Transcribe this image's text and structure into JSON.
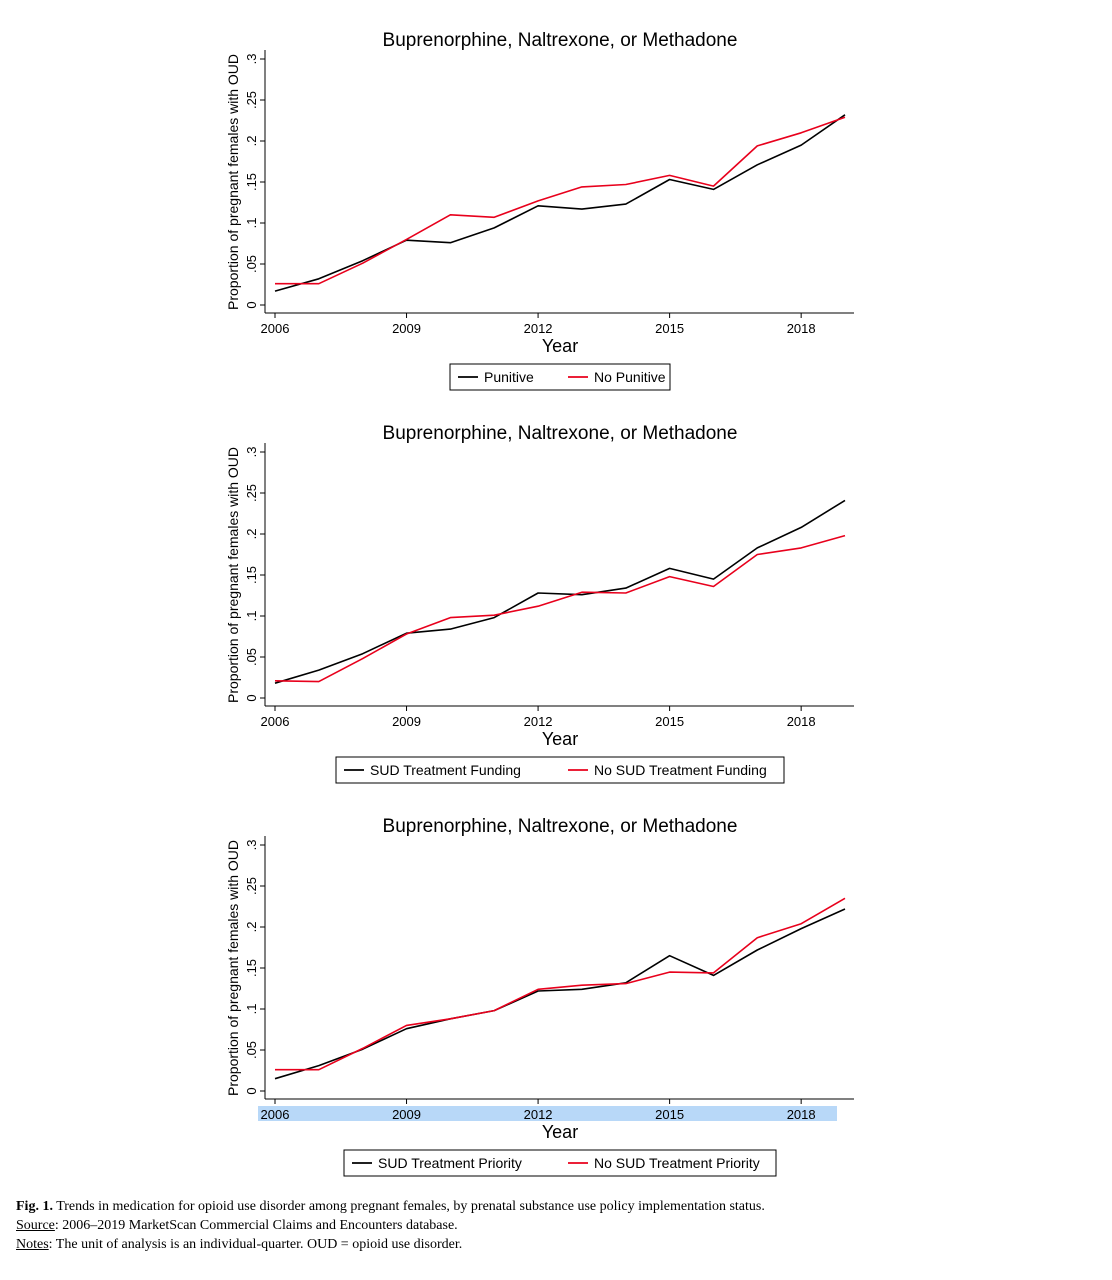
{
  "chart_data": [
    {
      "type": "line",
      "title": "Buprenorphine, Naltrexone, or Methadone",
      "xlabel": "Year",
      "ylabel": "Proportion of pregnant females with OUD",
      "xticks": [
        2006,
        2009,
        2012,
        2015,
        2018
      ],
      "yticks": [
        "0",
        ".05",
        ".1",
        ".15",
        ".2",
        ".25",
        ".3"
      ],
      "ylim": [
        0,
        0.3
      ],
      "xlim": [
        2006,
        2019
      ],
      "legend_position": "bottom",
      "x": [
        2006,
        2007,
        2008,
        2009,
        2010,
        2011,
        2012,
        2013,
        2014,
        2015,
        2016,
        2017,
        2018,
        2019
      ],
      "series": [
        {
          "name": "Punitive",
          "color": "#000000",
          "values": [
            0.017,
            0.032,
            0.054,
            0.079,
            0.076,
            0.094,
            0.121,
            0.117,
            0.123,
            0.153,
            0.141,
            0.171,
            0.195,
            0.232
          ]
        },
        {
          "name": "No Punitive",
          "color": "#e8001c",
          "values": [
            0.026,
            0.026,
            0.051,
            0.08,
            0.11,
            0.107,
            0.127,
            0.144,
            0.147,
            0.158,
            0.145,
            0.194,
            0.21,
            0.229
          ]
        }
      ]
    },
    {
      "type": "line",
      "title": "Buprenorphine, Naltrexone, or Methadone",
      "xlabel": "Year",
      "ylabel": "Proportion of pregnant females with OUD",
      "xticks": [
        2006,
        2009,
        2012,
        2015,
        2018
      ],
      "yticks": [
        "0",
        ".05",
        ".1",
        ".15",
        ".2",
        ".25",
        ".3"
      ],
      "ylim": [
        0,
        0.3
      ],
      "xlim": [
        2006,
        2019
      ],
      "legend_position": "bottom",
      "x": [
        2006,
        2007,
        2008,
        2009,
        2010,
        2011,
        2012,
        2013,
        2014,
        2015,
        2016,
        2017,
        2018,
        2019
      ],
      "series": [
        {
          "name": "SUD Treatment Funding",
          "color": "#000000",
          "values": [
            0.018,
            0.034,
            0.054,
            0.079,
            0.084,
            0.098,
            0.128,
            0.126,
            0.134,
            0.158,
            0.145,
            0.183,
            0.208,
            0.241
          ]
        },
        {
          "name": "No SUD Treatment Funding",
          "color": "#e8001c",
          "values": [
            0.021,
            0.02,
            0.048,
            0.078,
            0.098,
            0.101,
            0.112,
            0.129,
            0.128,
            0.148,
            0.136,
            0.175,
            0.183,
            0.198
          ]
        }
      ]
    },
    {
      "type": "line",
      "title": "Buprenorphine, Naltrexone, or Methadone",
      "xlabel": "Year",
      "ylabel": "Proportion of pregnant females with OUD",
      "xticks": [
        2006,
        2009,
        2012,
        2015,
        2018
      ],
      "yticks": [
        "0",
        ".05",
        ".1",
        ".15",
        ".2",
        ".25",
        ".3"
      ],
      "ylim": [
        0,
        0.3
      ],
      "xlim": [
        2006,
        2019
      ],
      "legend_position": "bottom",
      "x": [
        2006,
        2007,
        2008,
        2009,
        2010,
        2011,
        2012,
        2013,
        2014,
        2015,
        2016,
        2017,
        2018,
        2019
      ],
      "series": [
        {
          "name": "SUD Treatment Priority",
          "color": "#000000",
          "values": [
            0.015,
            0.031,
            0.051,
            0.076,
            0.088,
            0.098,
            0.122,
            0.124,
            0.132,
            0.165,
            0.141,
            0.172,
            0.198,
            0.222
          ]
        },
        {
          "name": "No SUD Treatment Priority",
          "color": "#e8001c",
          "values": [
            0.026,
            0.026,
            0.052,
            0.08,
            0.088,
            0.098,
            0.124,
            0.129,
            0.131,
            0.145,
            0.144,
            0.187,
            0.204,
            0.235
          ]
        }
      ]
    }
  ],
  "caption": {
    "fig_label": "Fig. 1.",
    "fig_text": "Trends in medication for opioid use disorder among pregnant females, by prenatal substance use policy implementation status.",
    "source_label": "Source",
    "source_text": ": 2006–2019 MarketScan Commercial Claims and Encounters database.",
    "notes_label": "Notes",
    "notes_text": ": The unit of analysis is an individual-quarter. OUD = opioid use disorder."
  }
}
